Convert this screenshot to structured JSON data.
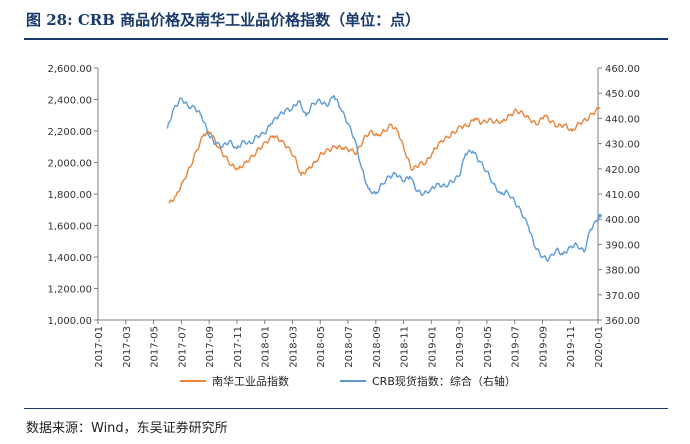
{
  "title": "图 28: CRB 商品价格及南华工业品价格指数（单位：点）",
  "source": "数据来源：Wind，东吴证券研究所",
  "chart_data": {
    "type": "line",
    "x_categories": [
      "2017-01",
      "2017-03",
      "2017-05",
      "2017-07",
      "2017-09",
      "2017-11",
      "2018-01",
      "2018-03",
      "2018-05",
      "2018-07",
      "2018-09",
      "2018-11",
      "2019-01",
      "2019-03",
      "2019-05",
      "2019-07",
      "2019-09",
      "2019-11",
      "2020-01"
    ],
    "y_left": {
      "min": 1000,
      "max": 2600,
      "ticks": [
        "1,000.00",
        "1,200.00",
        "1,400.00",
        "1,600.00",
        "1,800.00",
        "2,000.00",
        "2,200.00",
        "2,400.00",
        "2,600.00"
      ]
    },
    "y_right": {
      "min": 360,
      "max": 460,
      "ticks": [
        "360.00",
        "370.00",
        "380.00",
        "390.00",
        "400.00",
        "410.00",
        "420.00",
        "430.00",
        "440.00",
        "450.00",
        "460.00"
      ]
    },
    "series": [
      {
        "name": "南华工业品指数",
        "axis": "left",
        "color": "#e8833a",
        "points": [
          [
            "2017-06-05",
            1740
          ],
          [
            "2017-06-20",
            1790
          ],
          [
            "2017-07-05",
            1880
          ],
          [
            "2017-07-20",
            1970
          ],
          [
            "2017-08-05",
            2080
          ],
          [
            "2017-08-20",
            2180
          ],
          [
            "2017-09-05",
            2190
          ],
          [
            "2017-09-20",
            2100
          ],
          [
            "2017-10-05",
            2040
          ],
          [
            "2017-10-20",
            1980
          ],
          [
            "2017-11-05",
            1960
          ],
          [
            "2017-11-20",
            2000
          ],
          [
            "2017-12-05",
            2040
          ],
          [
            "2017-12-20",
            2090
          ],
          [
            "2018-01-05",
            2130
          ],
          [
            "2018-01-20",
            2170
          ],
          [
            "2018-02-05",
            2140
          ],
          [
            "2018-02-20",
            2100
          ],
          [
            "2018-03-05",
            2040
          ],
          [
            "2018-03-20",
            1920
          ],
          [
            "2018-04-05",
            1960
          ],
          [
            "2018-04-20",
            2000
          ],
          [
            "2018-05-05",
            2060
          ],
          [
            "2018-05-20",
            2080
          ],
          [
            "2018-06-05",
            2100
          ],
          [
            "2018-06-20",
            2090
          ],
          [
            "2018-07-05",
            2080
          ],
          [
            "2018-07-20",
            2060
          ],
          [
            "2018-08-05",
            2150
          ],
          [
            "2018-08-20",
            2200
          ],
          [
            "2018-09-05",
            2170
          ],
          [
            "2018-09-20",
            2200
          ],
          [
            "2018-10-05",
            2240
          ],
          [
            "2018-10-20",
            2190
          ],
          [
            "2018-11-05",
            2060
          ],
          [
            "2018-11-20",
            1950
          ],
          [
            "2018-12-05",
            1990
          ],
          [
            "2018-12-20",
            2000
          ],
          [
            "2019-01-05",
            2070
          ],
          [
            "2019-01-20",
            2130
          ],
          [
            "2019-02-05",
            2160
          ],
          [
            "2019-02-20",
            2190
          ],
          [
            "2019-03-05",
            2230
          ],
          [
            "2019-03-20",
            2230
          ],
          [
            "2019-04-05",
            2280
          ],
          [
            "2019-04-20",
            2250
          ],
          [
            "2019-05-05",
            2270
          ],
          [
            "2019-05-20",
            2260
          ],
          [
            "2019-06-05",
            2260
          ],
          [
            "2019-06-20",
            2300
          ],
          [
            "2019-07-05",
            2330
          ],
          [
            "2019-07-20",
            2310
          ],
          [
            "2019-08-05",
            2270
          ],
          [
            "2019-08-20",
            2240
          ],
          [
            "2019-09-05",
            2300
          ],
          [
            "2019-09-20",
            2260
          ],
          [
            "2019-10-05",
            2230
          ],
          [
            "2019-10-20",
            2240
          ],
          [
            "2019-11-05",
            2200
          ],
          [
            "2019-11-20",
            2250
          ],
          [
            "2019-12-05",
            2270
          ],
          [
            "2019-12-20",
            2310
          ],
          [
            "2020-01-05",
            2350
          ]
        ]
      },
      {
        "name": "CRB现货指数：综合（右轴）",
        "axis": "right",
        "color": "#5b9bd5",
        "points": [
          [
            "2017-06-01",
            436
          ],
          [
            "2017-06-15",
            444
          ],
          [
            "2017-07-01",
            448
          ],
          [
            "2017-07-15",
            445
          ],
          [
            "2017-08-01",
            444
          ],
          [
            "2017-08-15",
            441
          ],
          [
            "2017-09-01",
            433
          ],
          [
            "2017-09-15",
            430
          ],
          [
            "2017-10-01",
            429
          ],
          [
            "2017-10-15",
            431
          ],
          [
            "2017-11-01",
            428
          ],
          [
            "2017-11-15",
            431
          ],
          [
            "2017-12-01",
            430
          ],
          [
            "2017-12-15",
            433
          ],
          [
            "2018-01-01",
            434
          ],
          [
            "2018-01-15",
            438
          ],
          [
            "2018-02-01",
            441
          ],
          [
            "2018-02-15",
            443
          ],
          [
            "2018-03-01",
            444
          ],
          [
            "2018-03-15",
            447
          ],
          [
            "2018-04-01",
            441
          ],
          [
            "2018-04-15",
            446
          ],
          [
            "2018-05-01",
            447
          ],
          [
            "2018-05-15",
            445
          ],
          [
            "2018-06-01",
            449
          ],
          [
            "2018-06-15",
            444
          ],
          [
            "2018-07-01",
            438
          ],
          [
            "2018-07-15",
            432
          ],
          [
            "2018-08-01",
            420
          ],
          [
            "2018-08-15",
            412
          ],
          [
            "2018-09-01",
            410
          ],
          [
            "2018-09-15",
            414
          ],
          [
            "2018-10-01",
            417
          ],
          [
            "2018-10-15",
            418
          ],
          [
            "2018-11-01",
            415
          ],
          [
            "2018-11-15",
            417
          ],
          [
            "2018-12-01",
            411
          ],
          [
            "2018-12-15",
            410
          ],
          [
            "2019-01-01",
            412
          ],
          [
            "2019-01-15",
            414
          ],
          [
            "2019-02-01",
            413
          ],
          [
            "2019-02-15",
            415
          ],
          [
            "2019-03-01",
            417
          ],
          [
            "2019-03-15",
            426
          ],
          [
            "2019-04-01",
            427
          ],
          [
            "2019-04-15",
            423
          ],
          [
            "2019-05-01",
            419
          ],
          [
            "2019-05-15",
            414
          ],
          [
            "2019-06-01",
            410
          ],
          [
            "2019-06-15",
            411
          ],
          [
            "2019-07-01",
            407
          ],
          [
            "2019-07-15",
            403
          ],
          [
            "2019-08-01",
            397
          ],
          [
            "2019-08-15",
            389
          ],
          [
            "2019-09-01",
            385
          ],
          [
            "2019-09-15",
            384
          ],
          [
            "2019-10-01",
            388
          ],
          [
            "2019-10-15",
            386
          ],
          [
            "2019-11-01",
            389
          ],
          [
            "2019-11-15",
            390
          ],
          [
            "2019-12-01",
            387
          ],
          [
            "2019-12-15",
            396
          ],
          [
            "2020-01-01",
            400
          ],
          [
            "2020-01-08",
            402
          ]
        ]
      }
    ],
    "legend": {
      "placement": "bottom"
    }
  }
}
